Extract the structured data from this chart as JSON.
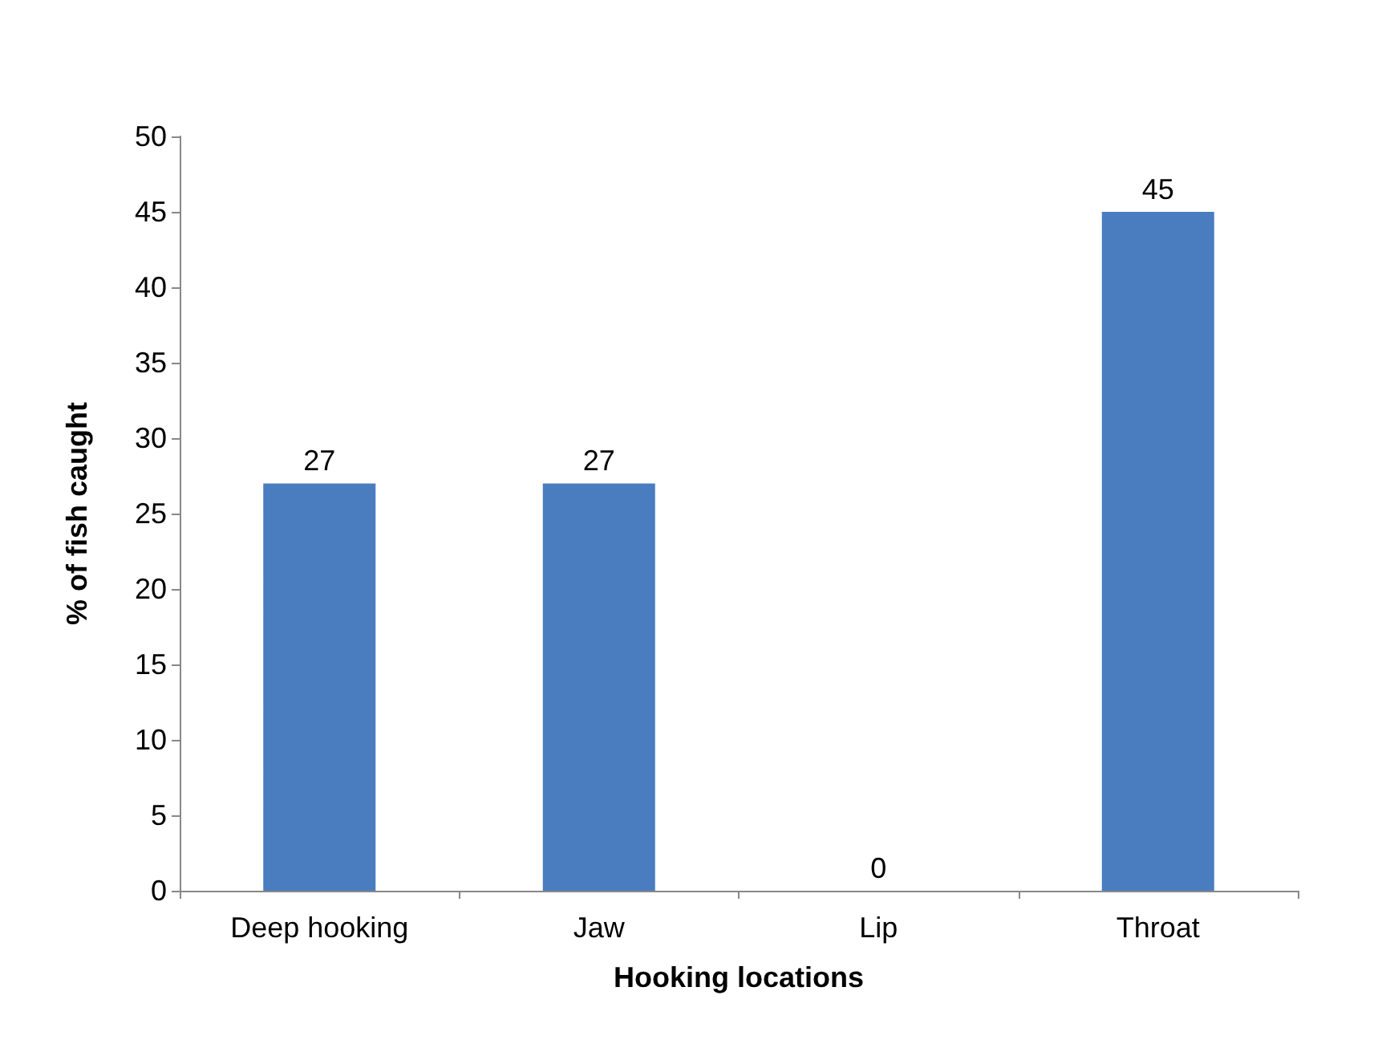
{
  "chart_data": {
    "type": "bar",
    "xlabel": "Hooking locations",
    "ylabel": "% of fish caught",
    "categories": [
      "Deep hooking",
      "Jaw",
      "Lip",
      "Throat"
    ],
    "values": [
      27,
      27,
      0,
      45
    ],
    "color": "#4a7cc0",
    "ylim": [
      0,
      50
    ],
    "yticks": [
      0,
      5,
      10,
      15,
      20,
      25,
      30,
      35,
      40,
      45,
      50
    ],
    "grid": false,
    "data_labels": true
  }
}
